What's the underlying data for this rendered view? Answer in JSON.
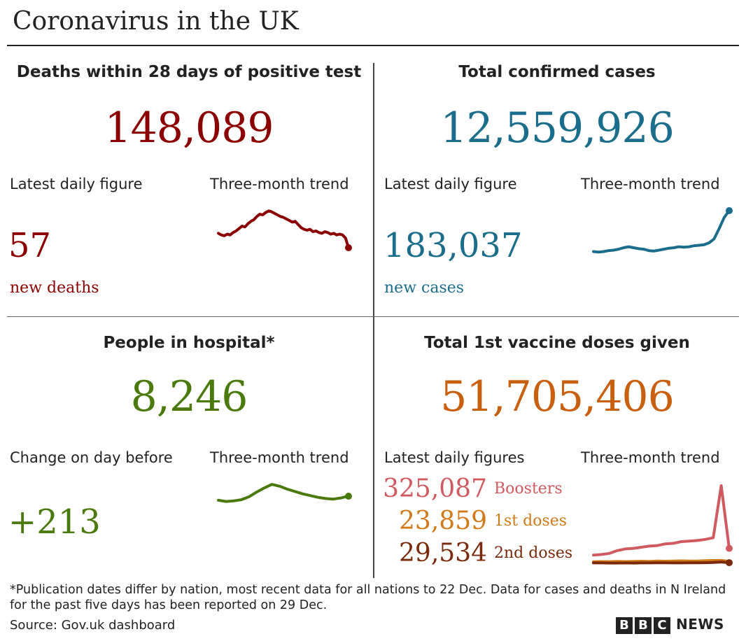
{
  "title": "Coronavirus in the UK",
  "colors": {
    "deaths": "#8b0000",
    "cases": "#1a6e8c",
    "hospital": "#4a7a0c",
    "vaccine": "#c8600f",
    "boosters": "#d05a5f",
    "first_doses": "#d07a18",
    "second_doses": "#7a2a0a"
  },
  "deaths": {
    "heading": "Deaths within 28 days of positive test",
    "total": "148,089",
    "latest_label": "Latest daily figure",
    "trend_label": "Three-month trend",
    "latest_value": "57",
    "latest_unit": "new deaths"
  },
  "cases": {
    "heading": "Total confirmed cases",
    "total": "12,559,926",
    "latest_label": "Latest daily figure",
    "trend_label": "Three-month trend",
    "latest_value": "183,037",
    "latest_unit": "new cases"
  },
  "hospital": {
    "heading": "People in hospital*",
    "total": "8,246",
    "latest_label": "Change on day before",
    "trend_label": "Three-month trend",
    "latest_value": "+213"
  },
  "vaccines": {
    "heading": "Total 1st vaccine doses given",
    "total": "51,705,406",
    "latest_label": "Latest daily figures",
    "trend_label": "Three-month trend",
    "figures": [
      {
        "value": "325,087",
        "label": "Boosters"
      },
      {
        "value": "23,859",
        "label": "1st doses"
      },
      {
        "value": "29,534",
        "label": "2nd doses"
      }
    ]
  },
  "chart_data": [
    {
      "type": "line",
      "series": [
        {
          "values": [
            32,
            30,
            29,
            31,
            30,
            33,
            35,
            38,
            41,
            40,
            44,
            47,
            49,
            53,
            56,
            55,
            58,
            60,
            59,
            57,
            55,
            53,
            52,
            50,
            48,
            46,
            47,
            43,
            39,
            37,
            36,
            37,
            34,
            35,
            33,
            32,
            34,
            33,
            31,
            32,
            30,
            31,
            30,
            26,
            14
          ]
        }
      ],
      "ylim": [
        0,
        70
      ],
      "grid": false
    },
    {
      "type": "line",
      "series": [
        {
          "values": [
            38,
            37,
            38,
            40,
            41,
            43,
            46,
            48,
            46,
            44,
            43,
            40,
            39,
            41,
            43,
            45,
            46,
            48,
            47,
            48,
            50,
            51,
            52,
            56,
            64,
            85,
            108,
            122
          ]
        }
      ],
      "ylim": [
        0,
        135
      ],
      "grid": false
    },
    {
      "type": "line",
      "series": [
        {
          "values": [
            7200,
            7000,
            7100,
            7300,
            7800,
            8600,
            9300,
            9900,
            9600,
            9100,
            8700,
            8300,
            8000,
            7700,
            7500,
            7400,
            7600,
            7900
          ]
        }
      ],
      "ylim": [
        6000,
        11000
      ],
      "grid": false
    },
    {
      "type": "line",
      "series": [
        {
          "values": [
            80,
            85,
            95,
            120,
            135,
            140,
            150,
            160,
            165,
            180,
            185,
            200,
            205,
            210,
            220,
            235,
            700,
            140
          ]
        },
        {
          "values": [
            20,
            22,
            21,
            23,
            22,
            24,
            25,
            24,
            26,
            25,
            27,
            28,
            26,
            27,
            30,
            31,
            32,
            24
          ]
        },
        {
          "values": [
            10,
            10,
            9,
            9,
            10,
            9,
            10,
            10,
            11,
            11,
            10,
            10,
            11,
            11,
            12,
            14,
            18,
            12
          ]
        }
      ],
      "ylim": [
        0,
        750
      ],
      "grid": false
    }
  ],
  "footnote": "*Publication dates differ by nation, most recent data for all nations to 22 Dec. Data for cases and deaths in N Ireland for the past five days has been reported on 29 Dec.",
  "source": "Source: Gov.uk dashboard",
  "brand": {
    "letters": [
      "B",
      "B",
      "C"
    ],
    "word": "NEWS"
  }
}
